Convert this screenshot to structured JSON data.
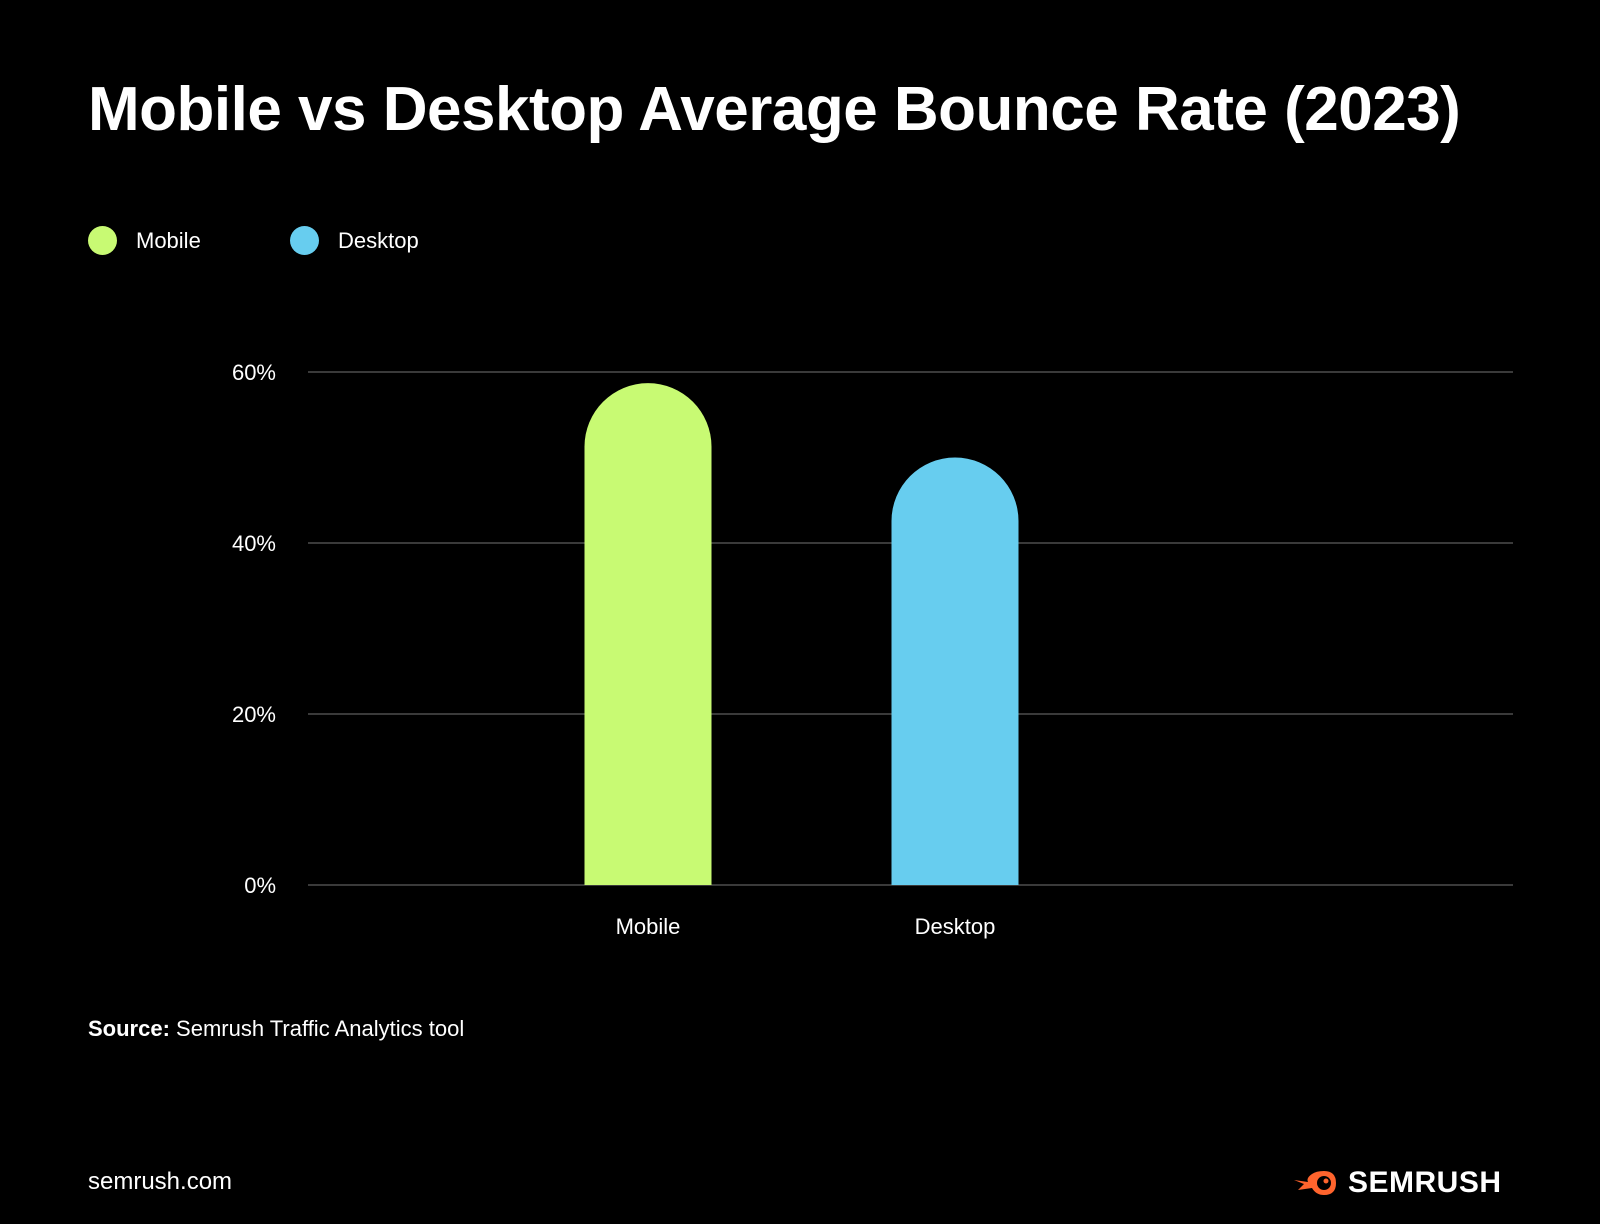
{
  "chart_data": {
    "type": "bar",
    "title": "Mobile vs Desktop Average Bounce Rate (2023)",
    "categories": [
      "Mobile",
      "Desktop"
    ],
    "series": [
      {
        "name": "Mobile",
        "values": [
          58.7,
          null
        ],
        "color": "#C8FA73"
      },
      {
        "name": "Desktop",
        "values": [
          null,
          50.0
        ],
        "color": "#67CDEF"
      }
    ],
    "values": [
      58.7,
      50.0
    ],
    "colors": [
      "#C8FA73",
      "#67CDEF"
    ],
    "xlabel": "",
    "ylabel": "",
    "ylim": [
      0,
      60
    ],
    "yticks": [
      0,
      20,
      40,
      60
    ],
    "ytick_labels": [
      "0%",
      "20%",
      "40%",
      "60%"
    ],
    "grid": true,
    "legend_position": "top-left"
  },
  "legend": [
    {
      "label": "Mobile",
      "color": "#C8FA73"
    },
    {
      "label": "Desktop",
      "color": "#67CDEF"
    }
  ],
  "source": {
    "label": "Source:",
    "text": "Semrush Traffic Analytics tool"
  },
  "footer": {
    "site": "semrush.com",
    "brand": "SEMRUSH",
    "brand_color": "#FF642D"
  }
}
